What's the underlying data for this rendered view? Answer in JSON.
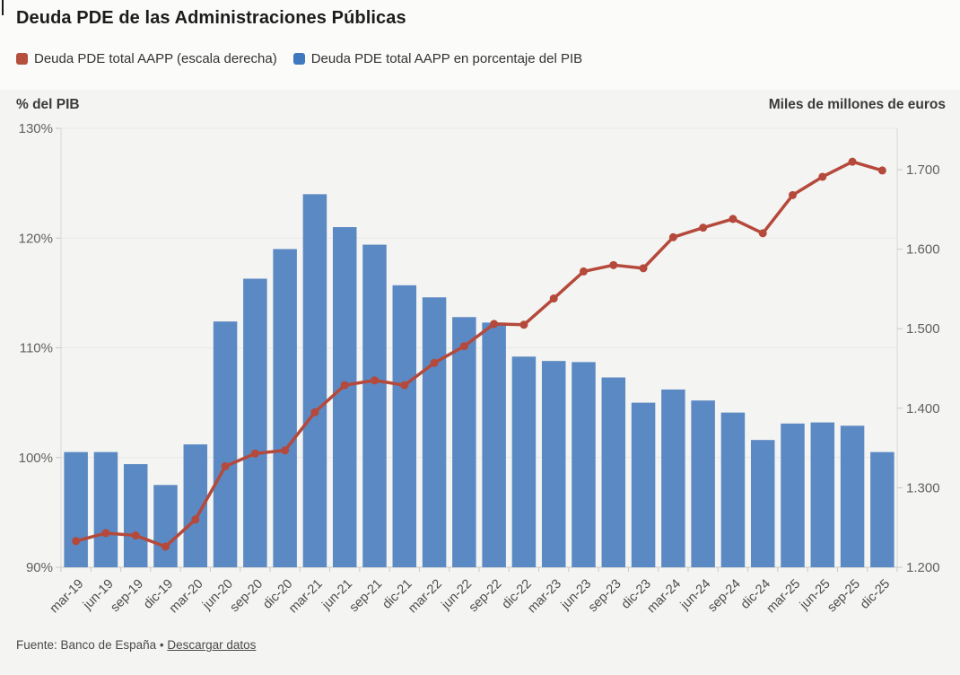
{
  "title": "Deuda PDE de las Administraciones Públicas",
  "legend": [
    {
      "label": "Deuda PDE total AAPP (escala derecha)",
      "color": "#b5503f"
    },
    {
      "label": "Deuda PDE total AAPP en porcentaje del PIB",
      "color": "#3e79bf"
    }
  ],
  "axes": {
    "left_title": "% del PIB",
    "right_title": "Miles de millones de euros"
  },
  "footer": {
    "source": "Fuente: Banco de España •",
    "link_label": "Descargar datos"
  },
  "chart_data": {
    "type": "bar",
    "subtype": "bar+line dual axis",
    "grid": "horizontal",
    "categories": [
      "mar-19",
      "jun-19",
      "sep-19",
      "dic-19",
      "mar-20",
      "jun-20",
      "sep-20",
      "dic-20",
      "mar-21",
      "jun-21",
      "sep-21",
      "dic-21",
      "mar-22",
      "jun-22",
      "sep-22",
      "dic-22",
      "mar-23",
      "jun-23",
      "sep-23",
      "dic-23",
      "mar-24",
      "jun-24",
      "sep-24",
      "dic-24",
      "mar-25",
      "jun-25",
      "sep-25",
      "dic-25"
    ],
    "series": [
      {
        "name": "Deuda PDE total AAPP en porcentaje del PIB",
        "type": "bar",
        "axis": "left",
        "unit": "% del PIB",
        "color": "#5b89c3",
        "values": [
          100.5,
          100.5,
          99.4,
          97.5,
          101.2,
          112.4,
          116.3,
          119.0,
          124.0,
          121.0,
          119.4,
          115.7,
          114.6,
          112.8,
          112.3,
          109.2,
          108.8,
          108.7,
          107.3,
          105.0,
          106.2,
          105.2,
          104.1,
          101.6,
          103.1,
          103.2,
          102.9,
          100.5
        ]
      },
      {
        "name": "Deuda PDE total AAPP (escala derecha)",
        "type": "line",
        "axis": "right",
        "unit": "miles de millones de euros",
        "color": "#b5493b",
        "values": [
          1233,
          1243,
          1240,
          1226,
          1260,
          1327,
          1343,
          1347,
          1395,
          1429,
          1435,
          1429,
          1457,
          1478,
          1506,
          1505,
          1538,
          1572,
          1580,
          1576,
          1615,
          1627,
          1638,
          1620,
          1668,
          1691,
          1710,
          1699
        ]
      }
    ],
    "left_axis": {
      "label": "% del PIB",
      "min": 90,
      "max": 130,
      "ticks": [
        130,
        120,
        110,
        100,
        90
      ],
      "tick_labels": [
        "130%",
        "120%",
        "110%",
        "100%",
        "90%"
      ]
    },
    "right_axis": {
      "label": "Miles de millones de euros",
      "min": 1200,
      "ticks": [
        1700,
        1600,
        1500,
        1400,
        1300,
        1200
      ],
      "tick_labels": [
        "1.700",
        "1.600",
        "1.500",
        "1.400",
        "1.300",
        "1.200"
      ]
    }
  }
}
